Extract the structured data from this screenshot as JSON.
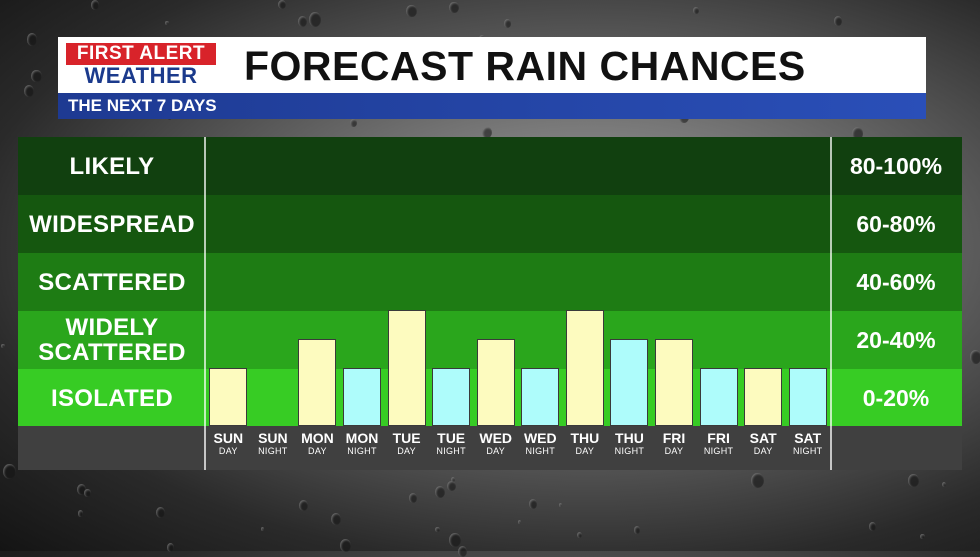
{
  "header": {
    "logo_line1": "FIRST ALERT",
    "logo_line2": "WEATHER",
    "title": "FORECAST RAIN CHANCES",
    "subtitle": "THE NEXT 7 DAYS"
  },
  "colors": {
    "day_bar": "#fdfbbf",
    "night_bar": "#aefcfb",
    "band_likely": "#11400f",
    "band_widespread": "#15570f",
    "band_scattered": "#1e7c14",
    "band_widely_scattered": "#2aa61c",
    "band_isolated": "#37cc24"
  },
  "chart_data": {
    "type": "bar",
    "title": "FORECAST RAIN CHANCES",
    "subtitle": "THE NEXT 7 DAYS",
    "y_scale": "categorical bands",
    "bands": [
      {
        "label": "LIKELY",
        "range": "80-100%"
      },
      {
        "label": "WIDESPREAD",
        "range": "60-80%"
      },
      {
        "label": "SCATTERED",
        "range": "40-60%"
      },
      {
        "label": "WIDELY SCATTERED",
        "range": "20-40%"
      },
      {
        "label": "ISOLATED",
        "range": "0-20%"
      }
    ],
    "ylim": [
      0,
      100
    ],
    "categories": [
      {
        "day": "SUN",
        "period": "DAY",
        "value": 20,
        "kind": "day"
      },
      {
        "day": "SUN",
        "period": "NIGHT",
        "value": 0,
        "kind": "night"
      },
      {
        "day": "MON",
        "period": "DAY",
        "value": 30,
        "kind": "day"
      },
      {
        "day": "MON",
        "period": "NIGHT",
        "value": 20,
        "kind": "night"
      },
      {
        "day": "TUE",
        "period": "DAY",
        "value": 40,
        "kind": "day"
      },
      {
        "day": "TUE",
        "period": "NIGHT",
        "value": 20,
        "kind": "night"
      },
      {
        "day": "WED",
        "period": "DAY",
        "value": 30,
        "kind": "day"
      },
      {
        "day": "WED",
        "period": "NIGHT",
        "value": 20,
        "kind": "night"
      },
      {
        "day": "THU",
        "period": "DAY",
        "value": 40,
        "kind": "day"
      },
      {
        "day": "THU",
        "period": "NIGHT",
        "value": 30,
        "kind": "night"
      },
      {
        "day": "FRI",
        "period": "DAY",
        "value": 30,
        "kind": "day"
      },
      {
        "day": "FRI",
        "period": "NIGHT",
        "value": 20,
        "kind": "night"
      },
      {
        "day": "SAT",
        "period": "DAY",
        "value": 20,
        "kind": "day"
      },
      {
        "day": "SAT",
        "period": "NIGHT",
        "value": 20,
        "kind": "night"
      }
    ]
  }
}
